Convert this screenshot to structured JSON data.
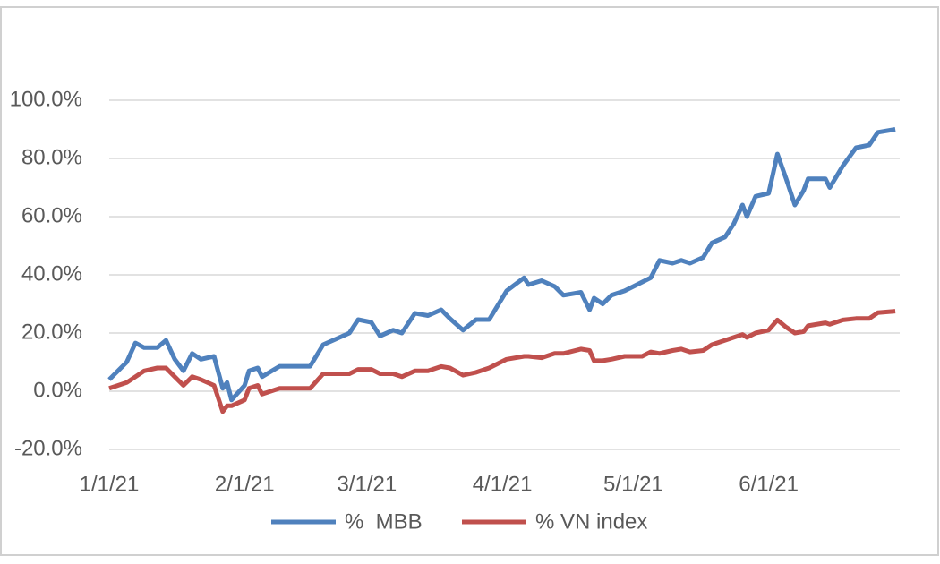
{
  "chart_data": {
    "type": "line",
    "x": [
      "2021-01-01",
      "2021-01-05",
      "2021-01-07",
      "2021-01-09",
      "2021-01-12",
      "2021-01-14",
      "2021-01-16",
      "2021-01-18",
      "2021-01-20",
      "2021-01-22",
      "2021-01-25",
      "2021-01-27",
      "2021-01-28",
      "2021-01-29",
      "2021-02-01",
      "2021-02-02",
      "2021-02-04",
      "2021-02-05",
      "2021-02-09",
      "2021-02-16",
      "2021-02-19",
      "2021-02-22",
      "2021-02-25",
      "2021-02-27",
      "2021-03-02",
      "2021-03-04",
      "2021-03-07",
      "2021-03-09",
      "2021-03-12",
      "2021-03-15",
      "2021-03-18",
      "2021-03-20",
      "2021-03-23",
      "2021-03-26",
      "2021-03-29",
      "2021-04-02",
      "2021-04-06",
      "2021-04-07",
      "2021-04-10",
      "2021-04-13",
      "2021-04-15",
      "2021-04-19",
      "2021-04-21",
      "2021-04-22",
      "2021-04-24",
      "2021-04-26",
      "2021-04-29",
      "2021-05-03",
      "2021-05-05",
      "2021-05-07",
      "2021-05-10",
      "2021-05-12",
      "2021-05-14",
      "2021-05-17",
      "2021-05-19",
      "2021-05-22",
      "2021-05-24",
      "2021-05-26",
      "2021-05-27",
      "2021-05-29",
      "2021-06-01",
      "2021-06-03",
      "2021-06-05",
      "2021-06-07",
      "2021-06-09",
      "2021-06-10",
      "2021-06-14",
      "2021-06-15",
      "2021-06-18",
      "2021-06-21",
      "2021-06-24",
      "2021-06-26",
      "2021-06-30"
    ],
    "series": [
      {
        "name": "%  MBB",
        "color": "#4f81bd",
        "values": [
          4,
          10,
          16.6,
          15,
          15,
          17.5,
          11,
          7,
          13,
          11,
          12,
          1,
          3,
          -3,
          2,
          7,
          8,
          5,
          8.6,
          8.6,
          16,
          18,
          20,
          24.6,
          23.7,
          19,
          21,
          20,
          26.8,
          26,
          28,
          25,
          21,
          24.6,
          24.6,
          34.5,
          39,
          36.6,
          38,
          36,
          33,
          34,
          28,
          32,
          30,
          33,
          34.5,
          37.5,
          39,
          45,
          44,
          45,
          44,
          46,
          51,
          53,
          57.5,
          64,
          60,
          67,
          68,
          81.5,
          73,
          64,
          69,
          73,
          73,
          70,
          77.5,
          83.7,
          84.6,
          89,
          90
        ]
      },
      {
        "name": "% VN index",
        "color": "#c0504d",
        "values": [
          1,
          3,
          5,
          7,
          8,
          8,
          5,
          2,
          5,
          4,
          2,
          -7,
          -5,
          -5,
          -3,
          1,
          2,
          -1,
          1,
          1,
          6,
          6,
          6,
          7.5,
          7.5,
          6,
          6,
          5,
          7,
          7,
          8.5,
          8,
          5.5,
          6.5,
          8,
          11,
          12,
          12,
          11.5,
          13,
          13,
          14.5,
          14,
          10.5,
          10.5,
          11,
          12,
          12,
          13.5,
          13,
          14,
          14.5,
          13.5,
          14,
          16,
          17.5,
          18.5,
          19.5,
          18.5,
          20,
          21,
          24.5,
          22,
          20,
          20.5,
          22.5,
          23.5,
          23,
          24.5,
          25,
          25,
          27,
          27.5
        ]
      }
    ],
    "xlim": [
      "2021-01-01",
      "2021-07-01"
    ],
    "xticks": [
      {
        "value": "2021-01-01",
        "label": "1/1/21"
      },
      {
        "value": "2021-02-01",
        "label": "2/1/21"
      },
      {
        "value": "2021-03-01",
        "label": "3/1/21"
      },
      {
        "value": "2021-04-01",
        "label": "4/1/21"
      },
      {
        "value": "2021-05-01",
        "label": "5/1/21"
      },
      {
        "value": "2021-06-01",
        "label": "6/1/21"
      }
    ],
    "ylim": [
      -20,
      100
    ],
    "yticks": [
      {
        "value": -20,
        "label": "-20.0%"
      },
      {
        "value": 0,
        "label": "0.0%"
      },
      {
        "value": 20,
        "label": "20.0%"
      },
      {
        "value": 40,
        "label": "40.0%"
      },
      {
        "value": 60,
        "label": "60.0%"
      },
      {
        "value": 80,
        "label": "80.0%"
      },
      {
        "value": 100,
        "label": "100.0%"
      }
    ],
    "grid": true,
    "legend": "bottom"
  }
}
